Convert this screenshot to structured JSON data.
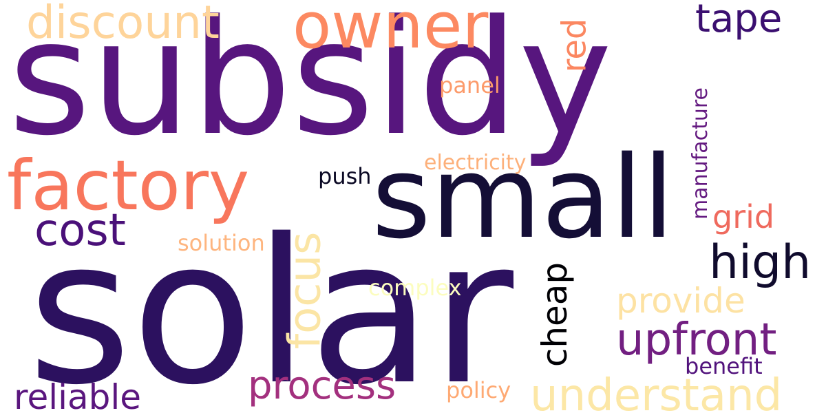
{
  "words": [
    {
      "key": "subsidy",
      "text": "subsidy",
      "color": "#57167e",
      "vertical": false
    },
    {
      "key": "solar",
      "text": "solar",
      "color": "#2c115f",
      "vertical": false
    },
    {
      "key": "small",
      "text": "small",
      "color": "#140e36",
      "vertical": false
    },
    {
      "key": "owner",
      "text": "owner",
      "color": "#fc8961",
      "vertical": false
    },
    {
      "key": "factory",
      "text": "factory",
      "color": "#f8765c",
      "vertical": false
    },
    {
      "key": "discount",
      "text": "discount",
      "color": "#fed49a",
      "vertical": false
    },
    {
      "key": "tape",
      "text": "tape",
      "color": "#3b0f70",
      "vertical": false
    },
    {
      "key": "red",
      "text": "red",
      "color": "#fb8761",
      "vertical": true
    },
    {
      "key": "panel",
      "text": "panel",
      "color": "#fc9a6a",
      "vertical": false
    },
    {
      "key": "electricity",
      "text": "electricity",
      "color": "#fdb07a",
      "vertical": false
    },
    {
      "key": "push",
      "text": "push",
      "color": "#0b0924",
      "vertical": false
    },
    {
      "key": "manufacture",
      "text": "manufacture",
      "color": "#641a80",
      "vertical": true
    },
    {
      "key": "cost",
      "text": "cost",
      "color": "#4a1079",
      "vertical": false
    },
    {
      "key": "grid",
      "text": "grid",
      "color": "#ef6a5e",
      "vertical": false
    },
    {
      "key": "solution",
      "text": "solution",
      "color": "#feb57f",
      "vertical": false
    },
    {
      "key": "focus",
      "text": "focus",
      "color": "#fbe5a5",
      "vertical": true
    },
    {
      "key": "high",
      "text": "high",
      "color": "#100b2d",
      "vertical": false
    },
    {
      "key": "complex",
      "text": "complex",
      "color": "#fcfdbf",
      "vertical": false
    },
    {
      "key": "cheap",
      "text": "cheap",
      "color": "#000004",
      "vertical": true
    },
    {
      "key": "provide",
      "text": "provide",
      "color": "#fde2a3",
      "vertical": false
    },
    {
      "key": "upfront",
      "text": "upfront",
      "color": "#721f81",
      "vertical": false
    },
    {
      "key": "benefit",
      "text": "benefit",
      "color": "#51127c",
      "vertical": false
    },
    {
      "key": "process",
      "text": "process",
      "color": "#a3307e",
      "vertical": false
    },
    {
      "key": "reliable",
      "text": "reliable",
      "color": "#5a167e",
      "vertical": false
    },
    {
      "key": "policy",
      "text": "policy",
      "color": "#fea973",
      "vertical": false
    },
    {
      "key": "understand",
      "text": "understand",
      "color": "#fce7a6",
      "vertical": false
    }
  ]
}
